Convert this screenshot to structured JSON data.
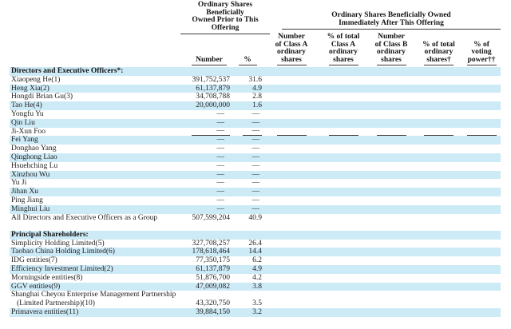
{
  "colors": {
    "row_highlight": "#cdeaf7",
    "rule_line": "#3a3a3a",
    "text": "#1f1f1f"
  },
  "header": {
    "group_prior": {
      "lines": [
        "Ordinary Shares",
        "Beneficially",
        "Owned Prior to This",
        "Offering"
      ]
    },
    "group_after": {
      "lines": [
        "Ordinary Shares Beneficially Owned",
        "Immediately After This Offering"
      ]
    },
    "col_number": "Number",
    "col_pct": "%",
    "after_cols": [
      {
        "lines": [
          "Number",
          "of Class A",
          "ordinary",
          "shares"
        ]
      },
      {
        "lines": [
          "% of total",
          "Class A",
          "ordinary",
          "shares"
        ]
      },
      {
        "lines": [
          "Number",
          "of Class B",
          "ordinary",
          "shares"
        ]
      },
      {
        "lines": [
          "% of total",
          "ordinary",
          "shares†"
        ]
      },
      {
        "lines": [
          "% of",
          "voting",
          "power††"
        ]
      }
    ]
  },
  "rows": [
    {
      "type": "section",
      "name": "Directors and Executive Officers*:",
      "shaded": true
    },
    {
      "type": "data",
      "name": "Xiaopeng He(1)",
      "number": "391,752,537",
      "pct": "31.6",
      "shaded": false
    },
    {
      "type": "data",
      "name": "Heng Xia(2)",
      "number": "61,137,879",
      "pct": "4.9",
      "shaded": true
    },
    {
      "type": "data",
      "name": "Hongdi Brian Gu(3)",
      "number": "34,708,788",
      "pct": "2.8",
      "shaded": false
    },
    {
      "type": "data",
      "name": "Tao He(4)",
      "number": "20,000,000",
      "pct": "1.6",
      "shaded": true
    },
    {
      "type": "data",
      "name": "Yongfu Yu",
      "number": "—",
      "pct": "—",
      "shaded": false
    },
    {
      "type": "data",
      "name": "Qin Liu",
      "number": "—",
      "pct": "—",
      "shaded": true
    },
    {
      "type": "data",
      "name": "Ji-Xun Foo",
      "number": "—",
      "pct": "—",
      "shaded": false,
      "rule": true
    },
    {
      "type": "data",
      "name": "Fei Yang",
      "number": "—",
      "pct": "—",
      "shaded": true
    },
    {
      "type": "data",
      "name": "Donghao Yang",
      "number": "—",
      "pct": "—",
      "shaded": false
    },
    {
      "type": "data",
      "name": "Qinghong Liao",
      "number": "—",
      "pct": "—",
      "shaded": true
    },
    {
      "type": "data",
      "name": "Hsuehching Lu",
      "number": "—",
      "pct": "—",
      "shaded": false
    },
    {
      "type": "data",
      "name": "Xinzhou Wu",
      "number": "—",
      "pct": "—",
      "shaded": true
    },
    {
      "type": "data",
      "name": "Yu Ji",
      "number": "—",
      "pct": "—",
      "shaded": false
    },
    {
      "type": "data",
      "name": "Jihan Xu",
      "number": "—",
      "pct": "—",
      "shaded": true
    },
    {
      "type": "data",
      "name": "Ping Jiang",
      "number": "—",
      "pct": "—",
      "shaded": false
    },
    {
      "type": "data",
      "name": "Minghui Liu",
      "number": "—",
      "pct": "—",
      "shaded": true
    },
    {
      "type": "data",
      "name": "All Directors and Executive Officers as a Group",
      "number": "507,599,204",
      "pct": "40.9",
      "shaded": false
    },
    {
      "type": "gap"
    },
    {
      "type": "section",
      "name": "Principal Shareholders:",
      "shaded": true
    },
    {
      "type": "data",
      "name": "Simplicity Holding Limited(5)",
      "number": "327,708,257",
      "pct": "26.4",
      "shaded": false
    },
    {
      "type": "data",
      "name": "Taobao China Holding Limited(6)",
      "number": "178,618,464",
      "pct": "14.4",
      "shaded": true
    },
    {
      "type": "data",
      "name": "IDG entities(7)",
      "number": "77,350,175",
      "pct": "6.2",
      "shaded": false
    },
    {
      "type": "data",
      "name": "Efficiency Investment Limited(2)",
      "number": "61,137,879",
      "pct": "4.9",
      "shaded": true
    },
    {
      "type": "data",
      "name": "Morningside entities(8)",
      "number": "51,876,700",
      "pct": "4.2",
      "shaded": false
    },
    {
      "type": "data",
      "name": "GGV entities(9)",
      "number": "47,009,082",
      "pct": "3.8",
      "shaded": true
    },
    {
      "type": "data",
      "name": "Shanghai Cheyou Enterprise Management Partnership",
      "number": "",
      "pct": "",
      "shaded": false
    },
    {
      "type": "data",
      "name": "(Limited Partnership)(10)",
      "indent": true,
      "number": "43,320,750",
      "pct": "3.5",
      "shaded": false
    },
    {
      "type": "data",
      "name": "Primavera entities(11)",
      "number": "39,884,150",
      "pct": "3.2",
      "shaded": true
    }
  ]
}
